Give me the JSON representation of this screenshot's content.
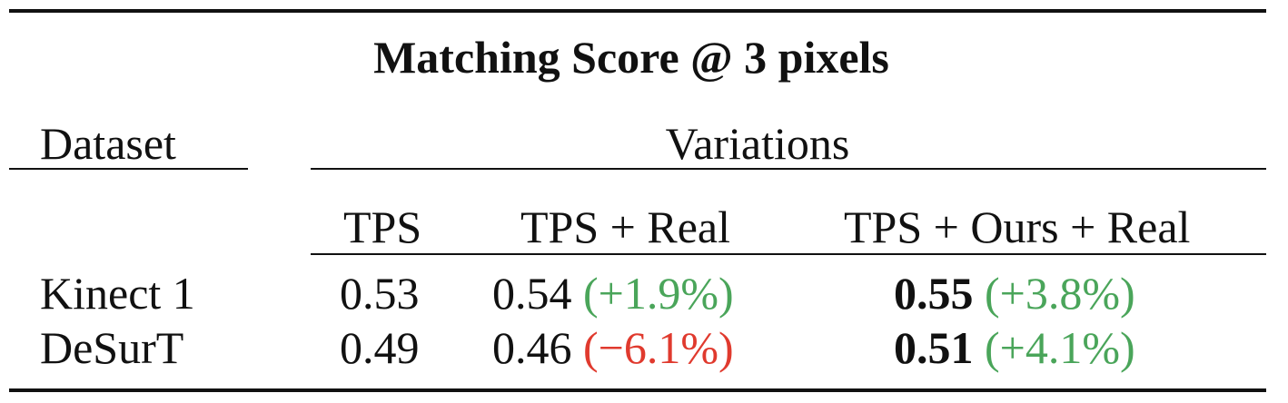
{
  "table": {
    "title": "Matching Score @ 3 pixels",
    "dataset_header": "Dataset",
    "group_header": "Variations",
    "columns": [
      "TPS",
      "TPS + Real",
      "TPS + Ours + Real"
    ],
    "rows": [
      {
        "dataset": "Kinect 1",
        "tps": "0.53",
        "tps_real": "0.54",
        "tps_real_delta": "(+1.9%)",
        "tps_ours_real": "0.55",
        "tps_ours_real_delta": "(+3.8%)"
      },
      {
        "dataset": "DeSurT",
        "tps": "0.49",
        "tps_real": "0.46",
        "tps_real_delta": "(−6.1%)",
        "tps_ours_real": "0.51",
        "tps_ours_real_delta": "(+4.1%)"
      }
    ]
  },
  "colors": {
    "improvement": "#4aa55a",
    "decline": "#e03a2e"
  }
}
